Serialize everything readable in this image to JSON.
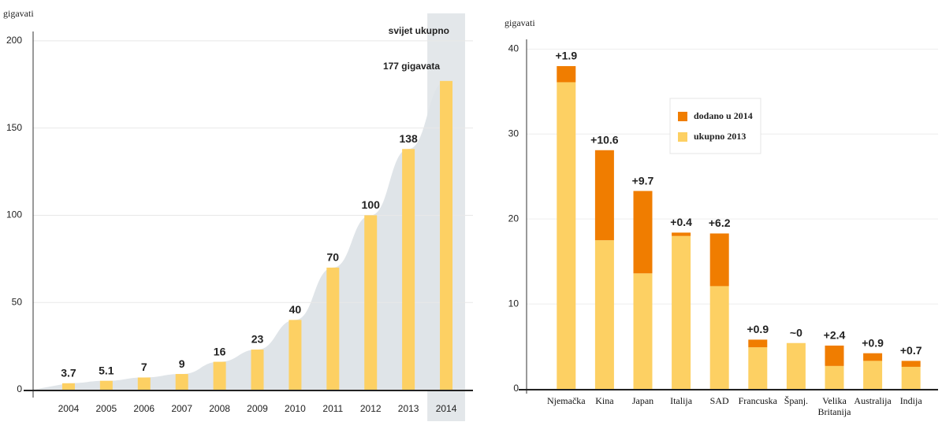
{
  "chart_data": [
    {
      "type": "bar",
      "y_label": "gigavati",
      "categories": [
        "2004",
        "2005",
        "2006",
        "2007",
        "2008",
        "2009",
        "2010",
        "2011",
        "2012",
        "2013",
        "2014"
      ],
      "values": [
        3.7,
        5.1,
        7,
        9,
        16,
        23,
        40,
        70,
        100,
        138,
        177
      ],
      "value_labels": [
        "3.7",
        "5.1",
        "7",
        "9",
        "16",
        "23",
        "40",
        "70",
        "100",
        "138",
        null
      ],
      "annotations": [
        "svijet ukupno",
        "177 gigavata"
      ],
      "color": "#fdd063",
      "area_color": "#dfe4e8",
      "ylim": [
        0,
        218
      ],
      "yticks": [
        0,
        50,
        100,
        150,
        200
      ],
      "grid": true
    },
    {
      "type": "stacked_bar",
      "y_label": "gigavati",
      "categories": [
        "Njemačka",
        "Kina",
        "Japan",
        "Italija",
        "SAD",
        "Francuska",
        "Španj.",
        "Velika Britanija",
        "Australija",
        "Indija"
      ],
      "series": [
        {
          "name": "ukupno 2013",
          "color": "#fdd063",
          "values": [
            36.1,
            17.5,
            13.6,
            18.0,
            12.1,
            4.9,
            5.4,
            2.7,
            3.3,
            2.6
          ]
        },
        {
          "name": "dodano u 2014",
          "color": "#f07d00",
          "values": [
            1.9,
            10.6,
            9.7,
            0.4,
            6.2,
            0.9,
            0,
            2.4,
            0.9,
            0.7
          ],
          "value_labels": [
            "+1.9",
            "+10.6",
            "+9.7",
            "+0.4",
            "+6.2",
            "+0.9",
            "~0",
            "+2.4",
            "+0.9",
            "+0.7"
          ]
        }
      ],
      "ylim": [
        0,
        43
      ],
      "yticks": [
        0,
        10,
        20,
        30,
        40
      ],
      "grid": true
    }
  ]
}
